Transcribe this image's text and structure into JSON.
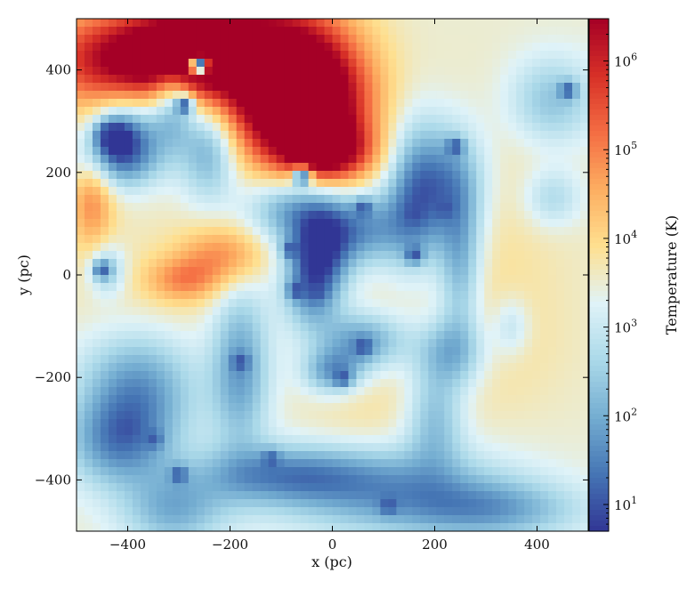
{
  "chart_data": {
    "type": "heatmap",
    "title": "",
    "xlabel": "x  (pc)",
    "ylabel": "y  (pc)",
    "xlim": [
      -500,
      500
    ],
    "ylim": [
      -500,
      500
    ],
    "x_ticks": [
      -400,
      -200,
      0,
      200,
      400
    ],
    "y_ticks": [
      -400,
      -200,
      0,
      200,
      400
    ],
    "x_tick_labels": [
      "−400",
      "−200",
      "0",
      "200",
      "400"
    ],
    "y_tick_labels": [
      "−400",
      "−200",
      "0",
      "200",
      "400"
    ],
    "colorbar": {
      "label": "Temperature  (K)",
      "scale": "log",
      "vmin": 5,
      "vmax": 3000000,
      "ticks": [
        10,
        100,
        1000,
        10000,
        100000,
        1000000
      ],
      "tick_labels": [
        {
          "base": "10",
          "exp": "1"
        },
        {
          "base": "10",
          "exp": "2"
        },
        {
          "base": "10",
          "exp": "3"
        },
        {
          "base": "10",
          "exp": "4"
        },
        {
          "base": "10",
          "exp": "5"
        },
        {
          "base": "10",
          "exp": "6"
        }
      ],
      "colormap": "RdYlBu_r",
      "colormap_stops": [
        "#313695",
        "#4575b4",
        "#74add1",
        "#abd9e9",
        "#e0f3f8",
        "#fee090",
        "#fdae61",
        "#f46d43",
        "#d73027",
        "#a50026"
      ]
    },
    "background_temperature": 3000,
    "regions": [
      {
        "kind": "hot",
        "x": -420,
        "y": 420,
        "sx": 110,
        "sy": 70,
        "log_amp": 2.8
      },
      {
        "kind": "hot",
        "x": -280,
        "y": 440,
        "sx": 80,
        "sy": 60,
        "log_amp": 3.0
      },
      {
        "kind": "hot",
        "x": -120,
        "y": 400,
        "sx": 100,
        "sy": 110,
        "log_amp": 3.2
      },
      {
        "kind": "hot",
        "x": -40,
        "y": 330,
        "sx": 80,
        "sy": 90,
        "log_amp": 3.2
      },
      {
        "kind": "hot",
        "x": -10,
        "y": 240,
        "sx": 60,
        "sy": 40,
        "log_amp": 2.4
      },
      {
        "kind": "hot",
        "x": -470,
        "y": 150,
        "sx": 30,
        "sy": 70,
        "log_amp": 1.4
      },
      {
        "kind": "hot",
        "x": -210,
        "y": 40,
        "sx": 60,
        "sy": 40,
        "log_amp": 1.3
      },
      {
        "kind": "hot",
        "x": -290,
        "y": -10,
        "sx": 50,
        "sy": 30,
        "log_amp": 1.2
      },
      {
        "kind": "warm",
        "x": 300,
        "y": 50,
        "sx": 120,
        "sy": 200,
        "log_amp": 0.35
      },
      {
        "kind": "warm",
        "x": 200,
        "y": -150,
        "sx": 150,
        "sy": 90,
        "log_amp": 0.3
      },
      {
        "kind": "warm",
        "x": -350,
        "y": -50,
        "sx": 120,
        "sy": 110,
        "log_amp": 0.3
      },
      {
        "kind": "warm",
        "x": 60,
        "y": -300,
        "sx": 90,
        "sy": 60,
        "log_amp": 0.25
      },
      {
        "kind": "cold",
        "x": -400,
        "y": 280,
        "sx": 50,
        "sy": 50,
        "log_amp": -2.0
      },
      {
        "kind": "cold",
        "x": -430,
        "y": 270,
        "sx": 25,
        "sy": 25,
        "log_amp": -1.6
      },
      {
        "kind": "cold",
        "x": -310,
        "y": 340,
        "sx": 30,
        "sy": 60,
        "log_amp": -1.8
      },
      {
        "kind": "cold",
        "x": -240,
        "y": 250,
        "sx": 40,
        "sy": 70,
        "log_amp": -1.8
      },
      {
        "kind": "cold",
        "x": -420,
        "y": 220,
        "sx": 60,
        "sy": 40,
        "log_amp": -1.4
      },
      {
        "kind": "cold",
        "x": -80,
        "y": 130,
        "sx": 60,
        "sy": 50,
        "log_amp": -1.7
      },
      {
        "kind": "cold",
        "x": -20,
        "y": 60,
        "sx": 40,
        "sy": 60,
        "log_amp": -1.8
      },
      {
        "kind": "cold",
        "x": -40,
        "y": -20,
        "sx": 40,
        "sy": 60,
        "log_amp": -1.9
      },
      {
        "kind": "cold",
        "x": 60,
        "y": 90,
        "sx": 60,
        "sy": 50,
        "log_amp": -1.7
      },
      {
        "kind": "cold",
        "x": 160,
        "y": 150,
        "sx": 40,
        "sy": 100,
        "log_amp": -1.8
      },
      {
        "kind": "cold",
        "x": 230,
        "y": 180,
        "sx": 50,
        "sy": 80,
        "log_amp": -1.7
      },
      {
        "kind": "cold",
        "x": 250,
        "y": 20,
        "sx": 30,
        "sy": 100,
        "log_amp": -1.5
      },
      {
        "kind": "cold",
        "x": 60,
        "y": -130,
        "sx": 60,
        "sy": 40,
        "log_amp": -1.8
      },
      {
        "kind": "cold",
        "x": 0,
        "y": -190,
        "sx": 40,
        "sy": 30,
        "log_amp": -1.6
      },
      {
        "kind": "cold",
        "x": 230,
        "y": -150,
        "sx": 50,
        "sy": 50,
        "log_amp": -1.6
      },
      {
        "kind": "cold",
        "x": 200,
        "y": -280,
        "sx": 40,
        "sy": 70,
        "log_amp": -1.3
      },
      {
        "kind": "cold",
        "x": -180,
        "y": -180,
        "sx": 40,
        "sy": 110,
        "log_amp": -1.7
      },
      {
        "kind": "cold",
        "x": -380,
        "y": -220,
        "sx": 80,
        "sy": 80,
        "log_amp": -1.8
      },
      {
        "kind": "cold",
        "x": -420,
        "y": -330,
        "sx": 70,
        "sy": 60,
        "log_amp": -1.6
      },
      {
        "kind": "cold",
        "x": -100,
        "y": -390,
        "sx": 120,
        "sy": 40,
        "log_amp": -1.6
      },
      {
        "kind": "cold",
        "x": 120,
        "y": -420,
        "sx": 160,
        "sy": 60,
        "log_amp": -1.6
      },
      {
        "kind": "cold",
        "x": 320,
        "y": -460,
        "sx": 120,
        "sy": 40,
        "log_amp": -1.3
      },
      {
        "kind": "cold",
        "x": -310,
        "y": -460,
        "sx": 70,
        "sy": 50,
        "log_amp": -1.4
      },
      {
        "kind": "cold",
        "x": 430,
        "y": 340,
        "sx": 60,
        "sy": 60,
        "log_amp": -1.2
      },
      {
        "kind": "cold",
        "x": 430,
        "y": 150,
        "sx": 40,
        "sy": 40,
        "log_amp": -0.9
      },
      {
        "kind": "cold",
        "x": -440,
        "y": 10,
        "sx": 25,
        "sy": 35,
        "log_amp": -1.2
      },
      {
        "kind": "cold",
        "x": 350,
        "y": -100,
        "sx": 25,
        "sy": 40,
        "log_amp": -0.8
      }
    ],
    "dense_cores": [
      {
        "x": -440,
        "y": 275,
        "temperature": 8
      },
      {
        "x": -260,
        "y": 410,
        "temperature": 8
      },
      {
        "x": -290,
        "y": 330,
        "temperature": 10
      },
      {
        "x": -60,
        "y": 190,
        "temperature": 12
      },
      {
        "x": 60,
        "y": 130,
        "temperature": 10
      },
      {
        "x": 160,
        "y": 120,
        "temperature": 9
      },
      {
        "x": 240,
        "y": 250,
        "temperature": 9
      },
      {
        "x": 220,
        "y": 130,
        "temperature": 10
      },
      {
        "x": 160,
        "y": 40,
        "temperature": 9
      },
      {
        "x": -80,
        "y": 50,
        "temperature": 9
      },
      {
        "x": -70,
        "y": -30,
        "temperature": 8
      },
      {
        "x": -30,
        "y": -30,
        "temperature": 9
      },
      {
        "x": 60,
        "y": -140,
        "temperature": 8
      },
      {
        "x": 20,
        "y": -200,
        "temperature": 10
      },
      {
        "x": -180,
        "y": -170,
        "temperature": 9
      },
      {
        "x": -400,
        "y": -300,
        "temperature": 10
      },
      {
        "x": -350,
        "y": -320,
        "temperature": 12
      },
      {
        "x": -300,
        "y": -390,
        "temperature": 10
      },
      {
        "x": 110,
        "y": -450,
        "temperature": 10
      },
      {
        "x": -120,
        "y": -360,
        "temperature": 12
      },
      {
        "x": 460,
        "y": 360,
        "temperature": 11
      },
      {
        "x": -450,
        "y": 10,
        "temperature": 12
      }
    ]
  }
}
